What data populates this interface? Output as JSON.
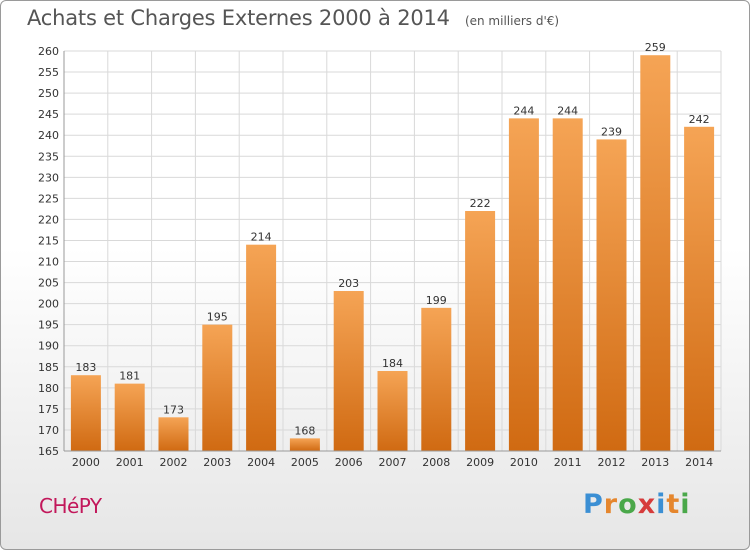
{
  "header": {
    "title": "Achats et Charges Externes 2000 à 2014",
    "subtitle": "(en milliers d'€)"
  },
  "footer": {
    "commune": "CHéPY",
    "logo_text": "Proxiti"
  },
  "colors": {
    "bar_light": "#f5a455",
    "bar_dark": "#d06a12",
    "grid": "#d9d9d9",
    "commune": "#c2185b"
  },
  "chart_data": {
    "type": "bar",
    "title": "Achats et Charges Externes 2000 à 2014",
    "subtitle": "(en milliers d'€)",
    "xlabel": "",
    "ylabel": "",
    "categories": [
      "2000",
      "2001",
      "2002",
      "2003",
      "2004",
      "2005",
      "2006",
      "2007",
      "2008",
      "2009",
      "2010",
      "2011",
      "2012",
      "2013",
      "2014"
    ],
    "values": [
      183,
      181,
      173,
      195,
      214,
      168,
      203,
      184,
      199,
      222,
      244,
      244,
      239,
      259,
      242
    ],
    "ylim": [
      165,
      260
    ],
    "yticks": [
      165,
      170,
      175,
      180,
      185,
      190,
      195,
      200,
      205,
      210,
      215,
      220,
      225,
      230,
      235,
      240,
      245,
      250,
      255,
      260
    ],
    "grid": true,
    "data_labels": true
  }
}
